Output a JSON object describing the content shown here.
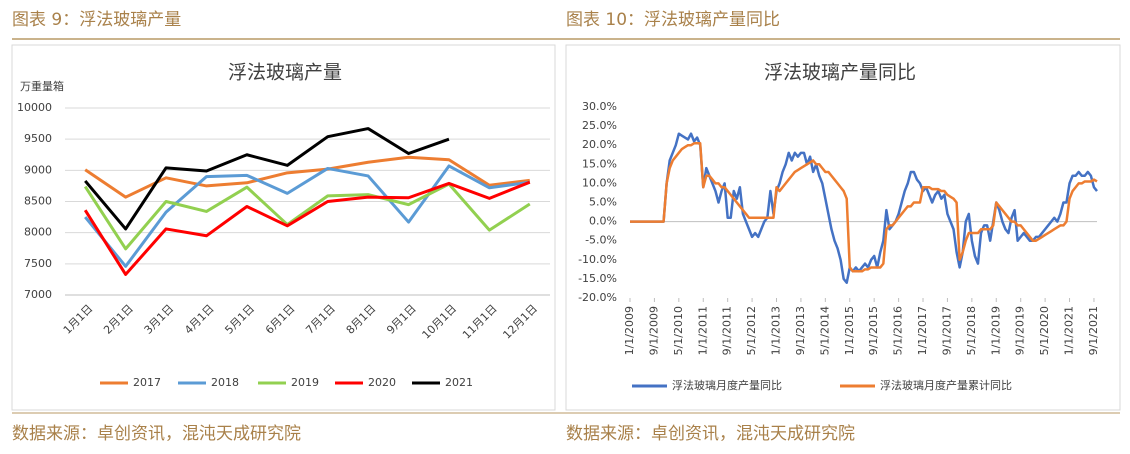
{
  "panels": [
    {
      "caption": "图表 9：浮法玻璃产量",
      "source": "数据来源：卓创资讯，混沌天成研究院"
    },
    {
      "caption": "图表 10：浮法玻璃产量同比",
      "source": "数据来源：卓创资讯，混沌天成研究院"
    }
  ],
  "chart_data": [
    {
      "type": "line",
      "title": "浮法玻璃产量",
      "y_label": "万重量箱",
      "categories": [
        "1月1日",
        "2月1日",
        "3月1日",
        "4月1日",
        "5月1日",
        "6月1日",
        "7月1日",
        "8月1日",
        "9月1日",
        "10月1日",
        "11月1日",
        "12月1日"
      ],
      "ylim": [
        7000,
        10000
      ],
      "yticks": [
        7000,
        7500,
        8000,
        8500,
        9000,
        9500,
        10000
      ],
      "grid": true,
      "legend": "bottom",
      "series": [
        {
          "name": "2017",
          "color": "#ED7D31",
          "values": [
            9010,
            8570,
            8880,
            8750,
            8800,
            8960,
            9020,
            9130,
            9210,
            9170,
            8760,
            8840
          ]
        },
        {
          "name": "2018",
          "color": "#5B9BD5",
          "values": [
            8250,
            7460,
            8330,
            8900,
            8920,
            8630,
            9030,
            8910,
            8170,
            9070,
            8720,
            8810
          ]
        },
        {
          "name": "2019",
          "color": "#92D050",
          "values": [
            8740,
            7740,
            8500,
            8340,
            8730,
            8130,
            8590,
            8610,
            8450,
            8780,
            8040,
            8460
          ]
        },
        {
          "name": "2020",
          "color": "#FF0000",
          "values": [
            8360,
            7330,
            8060,
            7950,
            8420,
            8110,
            8500,
            8570,
            8560,
            8790,
            8550,
            8810
          ]
        },
        {
          "name": "2021",
          "color": "#000000",
          "values": [
            8830,
            8060,
            9040,
            8990,
            9250,
            9080,
            9540,
            9670,
            9270,
            9500,
            null,
            null
          ]
        }
      ]
    },
    {
      "type": "line",
      "title": "浮法玻璃产量同比",
      "x": [
        "1/1/2009",
        "2/1/2009",
        "3/1/2009",
        "4/1/2009",
        "5/1/2009",
        "6/1/2009",
        "7/1/2009",
        "8/1/2009",
        "9/1/2009",
        "10/1/2009",
        "11/1/2009",
        "12/1/2009",
        "1/1/2010",
        "2/1/2010",
        "3/1/2010",
        "4/1/2010",
        "5/1/2010",
        "6/1/2010",
        "7/1/2010",
        "8/1/2010",
        "9/1/2010",
        "10/1/2010",
        "11/1/2010",
        "12/1/2010",
        "1/1/2011",
        "2/1/2011",
        "3/1/2011",
        "4/1/2011",
        "5/1/2011",
        "6/1/2011",
        "7/1/2011",
        "8/1/2011",
        "9/1/2011",
        "10/1/2011",
        "11/1/2011",
        "12/1/2011",
        "1/1/2012",
        "2/1/2012",
        "3/1/2012",
        "4/1/2012",
        "5/1/2012",
        "6/1/2012",
        "7/1/2012",
        "8/1/2012",
        "9/1/2012",
        "10/1/2012",
        "11/1/2012",
        "12/1/2012",
        "1/1/2013",
        "2/1/2013",
        "3/1/2013",
        "4/1/2013",
        "5/1/2013",
        "6/1/2013",
        "7/1/2013",
        "8/1/2013",
        "9/1/2013",
        "10/1/2013",
        "11/1/2013",
        "12/1/2013",
        "1/1/2014",
        "2/1/2014",
        "3/1/2014",
        "4/1/2014",
        "5/1/2014",
        "6/1/2014",
        "7/1/2014",
        "8/1/2014",
        "9/1/2014",
        "10/1/2014",
        "11/1/2014",
        "12/1/2014",
        "1/1/2015",
        "2/1/2015",
        "3/1/2015",
        "4/1/2015",
        "5/1/2015",
        "6/1/2015",
        "7/1/2015",
        "8/1/2015",
        "9/1/2015",
        "10/1/2015",
        "11/1/2015",
        "12/1/2015",
        "1/1/2016",
        "2/1/2016",
        "3/1/2016",
        "4/1/2016",
        "5/1/2016",
        "6/1/2016",
        "7/1/2016",
        "8/1/2016",
        "9/1/2016",
        "10/1/2016",
        "11/1/2016",
        "12/1/2016",
        "1/1/2017",
        "2/1/2017",
        "3/1/2017",
        "4/1/2017",
        "5/1/2017",
        "6/1/2017",
        "7/1/2017",
        "8/1/2017",
        "9/1/2017",
        "10/1/2017",
        "11/1/2017",
        "12/1/2017",
        "1/1/2018",
        "2/1/2018",
        "3/1/2018",
        "4/1/2018",
        "5/1/2018",
        "6/1/2018",
        "7/1/2018",
        "8/1/2018",
        "9/1/2018",
        "10/1/2018",
        "11/1/2018",
        "12/1/2018",
        "1/1/2019",
        "2/1/2019",
        "3/1/2019",
        "4/1/2019",
        "5/1/2019",
        "6/1/2019",
        "7/1/2019",
        "8/1/2019",
        "9/1/2019",
        "10/1/2019",
        "11/1/2019",
        "12/1/2019",
        "1/1/2020",
        "2/1/2020",
        "3/1/2020",
        "4/1/2020",
        "5/1/2020",
        "6/1/2020",
        "7/1/2020",
        "8/1/2020",
        "9/1/2020",
        "10/1/2020",
        "11/1/2020",
        "12/1/2020",
        "1/1/2021",
        "2/1/2021",
        "3/1/2021",
        "4/1/2021",
        "5/1/2021",
        "6/1/2021",
        "7/1/2021",
        "8/1/2021",
        "9/1/2021",
        "10/1/2021"
      ],
      "xticks": [
        "1/1/2009",
        "9/1/2009",
        "5/1/2010",
        "1/1/2011",
        "9/1/2011",
        "5/1/2012",
        "1/1/2013",
        "9/1/2013",
        "5/1/2014",
        "1/1/2015",
        "9/1/2015",
        "5/1/2016",
        "1/1/2017",
        "9/1/2017",
        "5/1/2018",
        "1/1/2019",
        "9/1/2019",
        "5/1/2020",
        "1/1/2021",
        "9/1/2021"
      ],
      "ylim": [
        -20,
        30
      ],
      "yticks": [
        {
          "value": -20,
          "label": "-20.0%"
        },
        {
          "value": -15,
          "label": "-15.0%"
        },
        {
          "value": -10,
          "label": "-10.0%"
        },
        {
          "value": -5,
          "label": "-5.0%"
        },
        {
          "value": 0,
          "label": "0.0%"
        },
        {
          "value": 5,
          "label": "5.0%"
        },
        {
          "value": 10,
          "label": "10.0%"
        },
        {
          "value": 15,
          "label": "15.0%"
        },
        {
          "value": 20,
          "label": "20.0%"
        },
        {
          "value": 25,
          "label": "25.0%"
        },
        {
          "value": 30,
          "label": "30.0%"
        }
      ],
      "grid": false,
      "legend": "bottom",
      "series": [
        {
          "name": "浮法玻璃月度产量同比",
          "color": "#4472C4",
          "values": [
            0,
            0,
            0,
            0,
            0,
            0,
            0,
            0,
            0,
            0,
            0,
            0,
            10,
            16,
            18,
            20,
            23,
            22.5,
            22,
            21.5,
            23,
            21,
            22,
            20,
            9,
            14,
            12,
            10,
            8,
            5,
            8,
            10,
            1,
            1,
            8,
            6,
            9,
            2,
            0,
            -2,
            -4,
            -3,
            -4,
            -2,
            0,
            1,
            8,
            2,
            8,
            10,
            13,
            15,
            18,
            16,
            18,
            17,
            18,
            18,
            15,
            17,
            13,
            15,
            12,
            10,
            6,
            2,
            -2,
            -5,
            -7,
            -10,
            -15,
            -16,
            -12,
            -13,
            -12,
            -13,
            -12,
            -11,
            -12,
            -10,
            -9,
            -12,
            -8,
            -5,
            3,
            -2,
            -1,
            0,
            2,
            5,
            8,
            10,
            13,
            13,
            11,
            10,
            8,
            9,
            7,
            5,
            7,
            8,
            6,
            7,
            2,
            0,
            -2,
            -8,
            -12,
            -8,
            0,
            2,
            -5,
            -9,
            -11,
            -3,
            -1,
            -1,
            -5,
            0,
            5,
            3,
            0,
            -2,
            -3,
            1,
            3,
            -5,
            -4,
            -3,
            -4,
            -5,
            -5,
            -4,
            -4,
            -3,
            -2,
            -1,
            0,
            1,
            0,
            2,
            5,
            5,
            10,
            12,
            12,
            13,
            12,
            12,
            13,
            12,
            9,
            8
          ]
        },
        {
          "name": "浮法玻璃月度产量累计同比",
          "color": "#ED7D31",
          "values": [
            0,
            0,
            0,
            0,
            0,
            0,
            0,
            0,
            0,
            0,
            0,
            0,
            10,
            14,
            16,
            17,
            18,
            19,
            19.5,
            20,
            20,
            20.5,
            20.5,
            20.5,
            9,
            12,
            12,
            11,
            10,
            10,
            9,
            9,
            8,
            7,
            6,
            5,
            4,
            3,
            2,
            1,
            1,
            1,
            1,
            1,
            1,
            1,
            1,
            1,
            9,
            8,
            9,
            10,
            11,
            12,
            13,
            13.5,
            14,
            14.5,
            15,
            15.5,
            16,
            15,
            15,
            14,
            13,
            13,
            12,
            11,
            10,
            9,
            8,
            6,
            -12,
            -13,
            -13,
            -13,
            -13,
            -12.5,
            -12.5,
            -12,
            -12,
            -12,
            -12,
            -11,
            -2,
            -1,
            -1,
            0,
            1,
            2,
            3,
            4,
            4,
            5,
            5,
            5,
            9,
            9,
            9,
            8.5,
            8.5,
            8.5,
            8,
            8,
            7,
            6.5,
            6,
            5,
            -10,
            -8,
            -5,
            -3,
            -3,
            -3,
            -3,
            -2,
            -2,
            -2,
            -2,
            -1,
            5,
            4,
            3,
            2,
            1,
            0,
            0,
            -1,
            -1,
            -2,
            -3,
            -4,
            -5,
            -5,
            -4.5,
            -4,
            -3.5,
            -3,
            -2.5,
            -2,
            -1.5,
            -1,
            -1,
            0,
            6,
            8,
            9,
            10,
            10,
            10.5,
            10.5,
            10.5,
            11,
            10.5
          ]
        }
      ]
    }
  ]
}
